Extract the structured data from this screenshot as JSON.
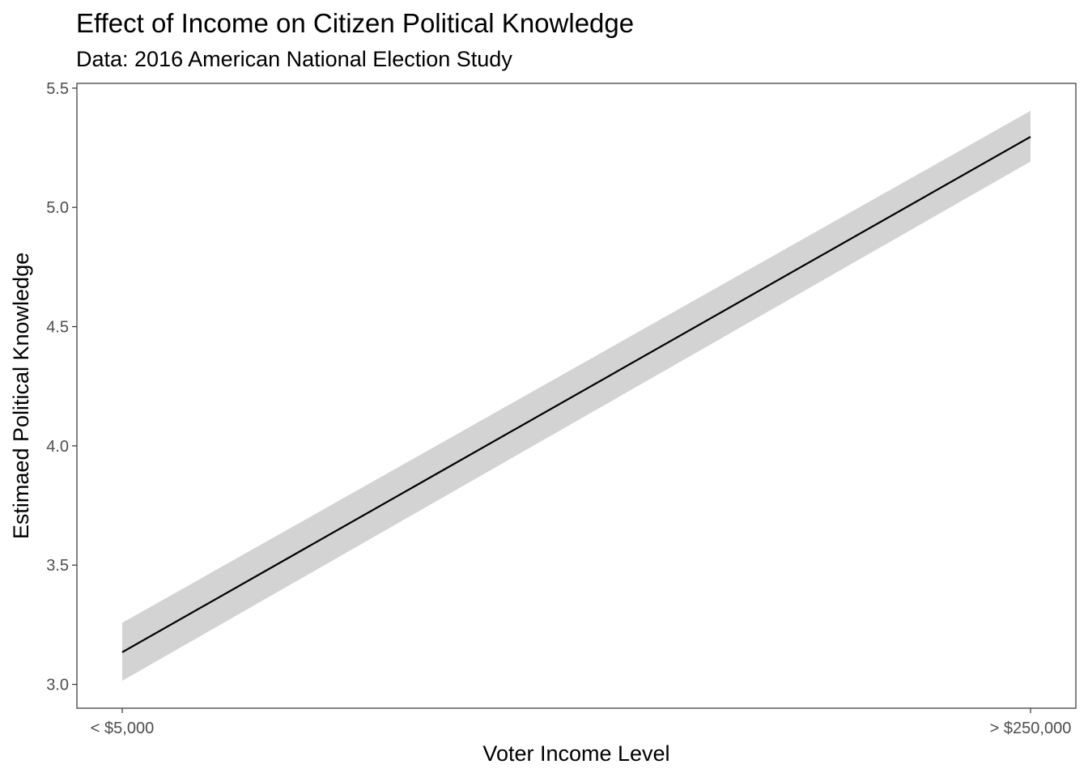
{
  "chart_data": {
    "type": "line",
    "title": "Effect of Income on Citizen Political Knowledge",
    "subtitle": "Data: 2016 American National Election Study",
    "xlabel": "Voter Income Level",
    "ylabel": "Estimaed Political Knowledge",
    "x_tick_labels": [
      "< $5,000",
      "> $250,000"
    ],
    "x": [
      1,
      2
    ],
    "y_ticks": [
      "3.0",
      "3.5",
      "4.0",
      "4.5",
      "5.0",
      "5.5"
    ],
    "ylim": [
      2.9,
      5.52
    ],
    "series": [
      {
        "values": [
          3.135,
          5.296
        ],
        "ci_lower": [
          3.015,
          5.192
        ],
        "ci_upper": [
          3.258,
          5.405
        ],
        "line_color": "#000000",
        "ribbon_color": "#d3d3d3"
      }
    ],
    "grid": false,
    "legend": "none"
  }
}
